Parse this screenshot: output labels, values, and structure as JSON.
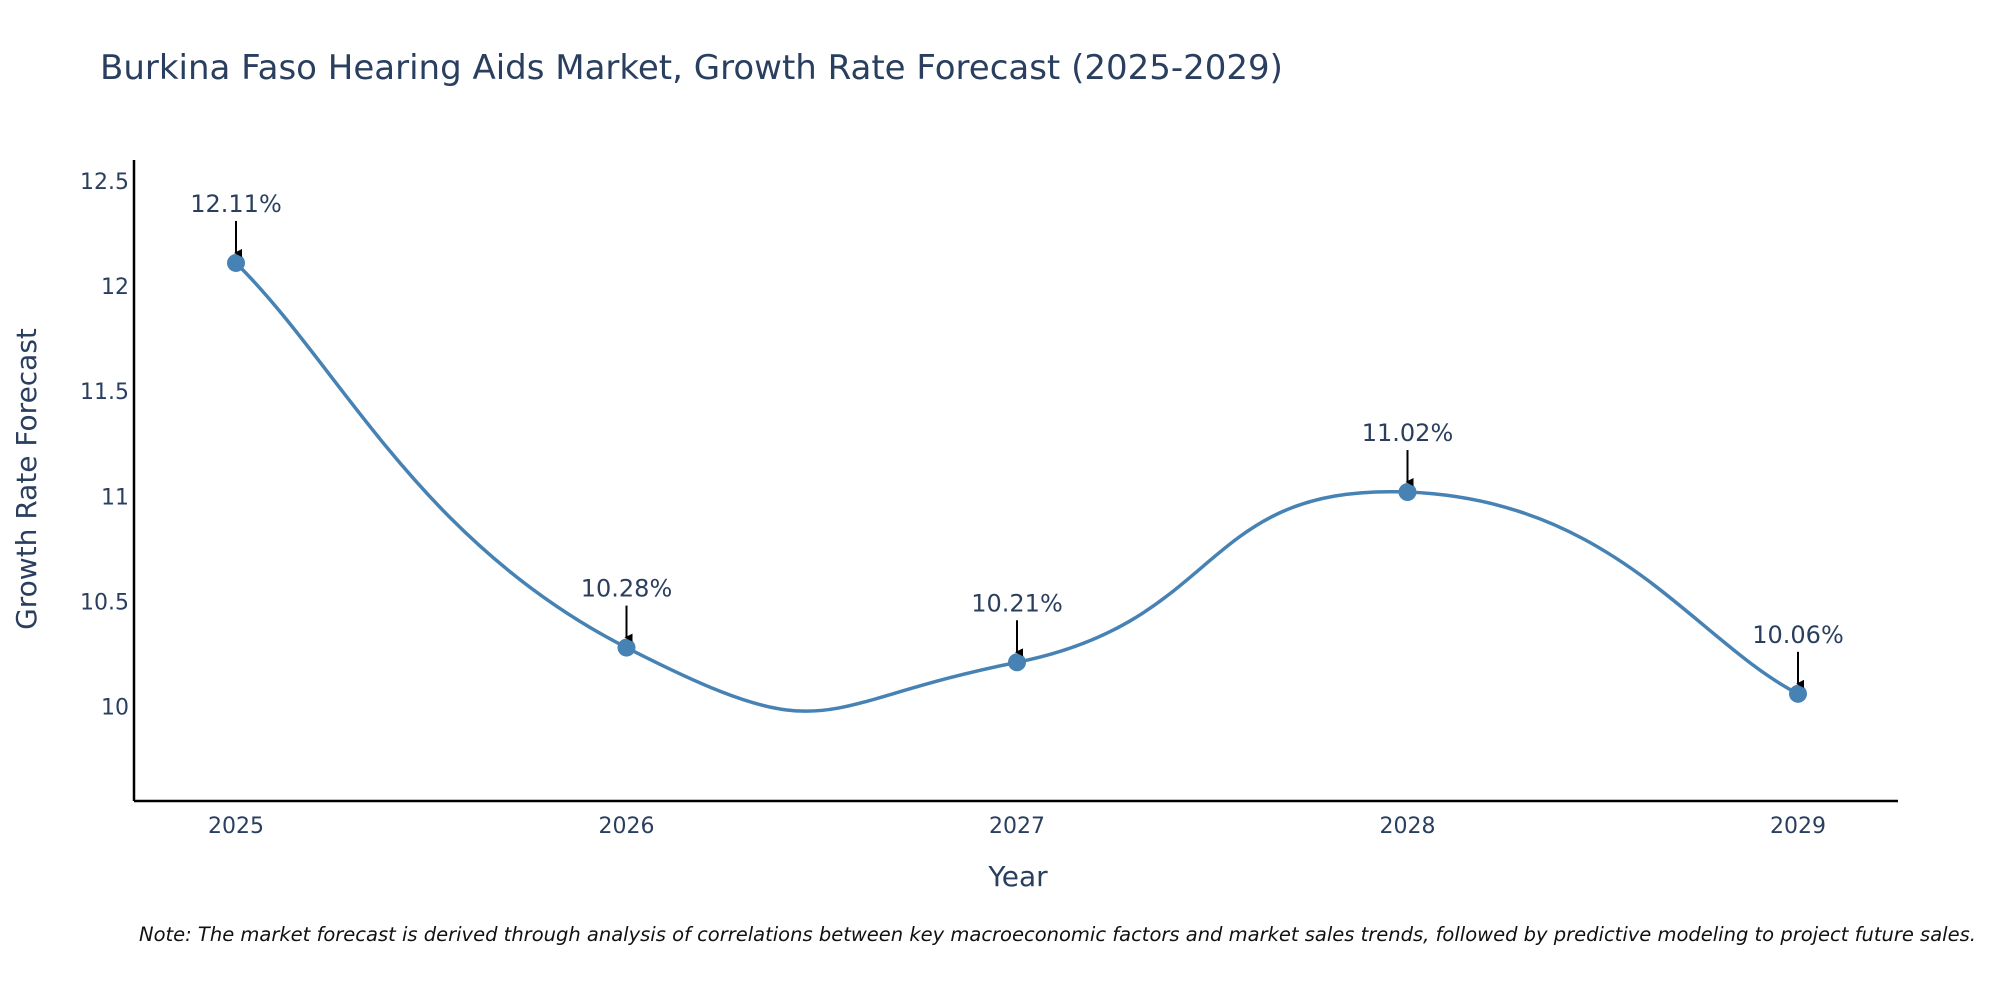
{
  "chart_data": {
    "type": "line",
    "title": "Burkina Faso Hearing Aids Market, Growth Rate Forecast (2025-2029)",
    "xlabel": "Year",
    "ylabel": "Growth Rate Forecast",
    "categories": [
      "2025",
      "2026",
      "2027",
      "2028",
      "2029"
    ],
    "series": [
      {
        "name": "Growth Rate Forecast",
        "values": [
          12.11,
          10.28,
          10.21,
          11.02,
          10.06
        ]
      }
    ],
    "data_labels": [
      "12.11%",
      "10.28%",
      "10.21%",
      "11.02%",
      "10.06%"
    ],
    "ylim": [
      9.55,
      12.6
    ],
    "yticks": [
      10,
      10.5,
      11,
      11.5,
      12,
      12.5
    ],
    "ytick_labels": [
      "10",
      "10.5",
      "11",
      "11.5",
      "12",
      "12.5"
    ],
    "grid": false,
    "line_shape": "spline",
    "note": "Note: The market forecast is derived through analysis of correlations between key macroeconomic factors and market sales trends, followed by predictive modeling to project future sales.",
    "colors": {
      "line": "#4682b4",
      "marker": "#4682b4",
      "arrow": "#000000",
      "text": "#2a3f5f",
      "axis": "#000000"
    }
  }
}
